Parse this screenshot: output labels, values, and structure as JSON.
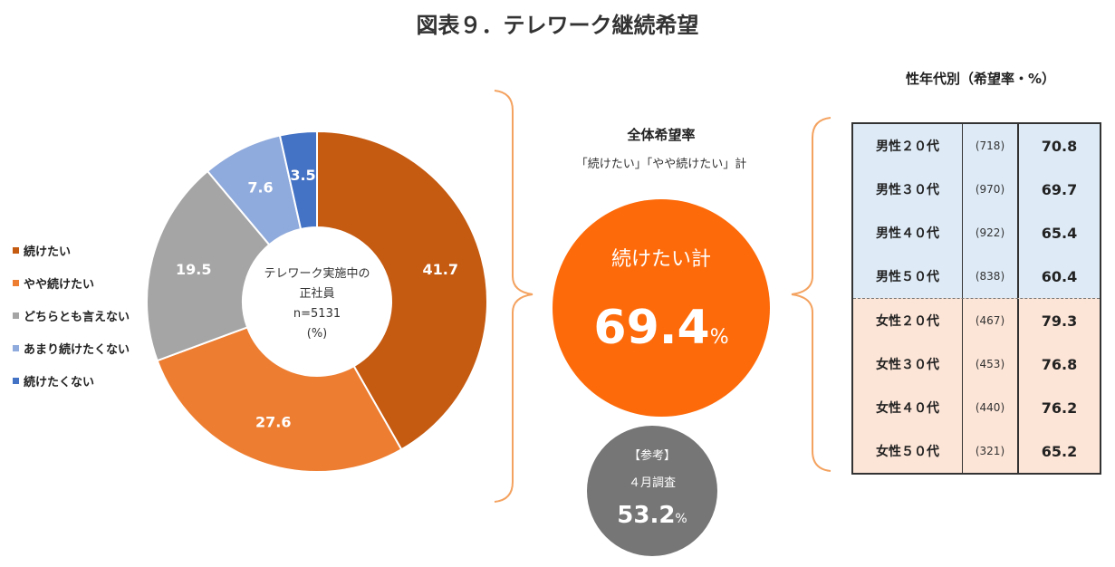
{
  "title": "図表９．テレワーク継続希望",
  "chart_data": [
    {
      "type": "pie",
      "categories": [
        "続けたい",
        "やや続けたい",
        "どちらとも言えない",
        "あまり続けたくない",
        "続けたくない"
      ],
      "values": [
        41.7,
        27.6,
        19.5,
        7.6,
        3.5
      ],
      "value_labels": [
        "41.7",
        "27.6",
        "19.5",
        "7.6",
        "3.5"
      ],
      "colors": [
        "#c55a11",
        "#ed7d31",
        "#a5a5a5",
        "#8faadc",
        "#4472c4"
      ],
      "label_colors": [
        "#ffffff",
        "#ffffff",
        "#ffffff",
        "#ffffff",
        "#ffffff"
      ],
      "center_label": [
        "テレワーク実施中の",
        "正社員",
        "n=5131",
        "(%)"
      ],
      "legend_placement": "left"
    },
    {
      "type": "table",
      "title": "性年代別（希望率・%）",
      "rows": [
        {
          "group": "男性２０代",
          "n": "(718)",
          "rate": "70.8",
          "sex": "male"
        },
        {
          "group": "男性３０代",
          "n": "(970)",
          "rate": "69.7",
          "sex": "male"
        },
        {
          "group": "男性４０代",
          "n": "(922)",
          "rate": "65.4",
          "sex": "male"
        },
        {
          "group": "男性５０代",
          "n": "(838)",
          "rate": "60.4",
          "sex": "male"
        },
        {
          "group": "女性２０代",
          "n": "(467)",
          "rate": "79.3",
          "sex": "female"
        },
        {
          "group": "女性３０代",
          "n": "(453)",
          "rate": "76.8",
          "sex": "female"
        },
        {
          "group": "女性４０代",
          "n": "(440)",
          "rate": "76.2",
          "sex": "female"
        },
        {
          "group": "女性５０代",
          "n": "(321)",
          "rate": "65.2",
          "sex": "female"
        }
      ]
    }
  ],
  "summary": {
    "title": "全体希望率",
    "subtitle": "「続けたい」「やや続けたい」計",
    "circle_label": "続けたい計",
    "value": "69.4",
    "unit": "%"
  },
  "reference": {
    "tag": "【参考】",
    "subtitle": "４月調査",
    "value": "53.2",
    "unit": "%"
  },
  "colors": {
    "brace": "#f4a25f",
    "summary_circle": "#fd6a0a",
    "reference_circle": "#767676",
    "male_row": "#deebf7",
    "female_row": "#fce4d6"
  }
}
